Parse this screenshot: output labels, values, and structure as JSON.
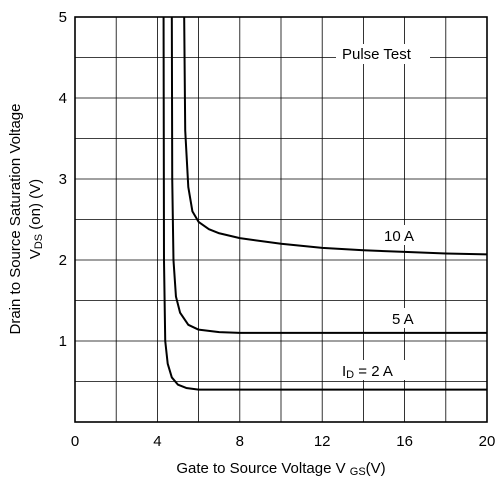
{
  "chart_data": {
    "type": "line",
    "xlabel": {
      "main": "Gate to Source Voltage V ",
      "sub": "GS",
      "tail": "(V)"
    },
    "ylabel": {
      "line1": "Drain to Source Saturation Voltage",
      "line2_main": "V",
      "line2_sub": "DS",
      "line2_tail": " (on)  (V)"
    },
    "xlim": [
      0,
      20
    ],
    "ylim": [
      0,
      5
    ],
    "x_ticks": [
      0,
      4,
      8,
      12,
      16,
      20
    ],
    "y_ticks": [
      1,
      2,
      3,
      4,
      5
    ],
    "grid": true,
    "annotation": "Pulse Test",
    "series": [
      {
        "name": "10 A",
        "x": [
          5.3,
          5.35,
          5.5,
          5.7,
          6.0,
          6.5,
          7.0,
          8.0,
          10.0,
          12.0,
          14.0,
          16.0,
          18.0,
          20.0
        ],
        "y": [
          5.0,
          3.6,
          2.9,
          2.6,
          2.47,
          2.38,
          2.33,
          2.27,
          2.2,
          2.15,
          2.12,
          2.1,
          2.08,
          2.07
        ]
      },
      {
        "name": "5 A",
        "x": [
          4.7,
          4.72,
          4.78,
          4.9,
          5.1,
          5.5,
          6.0,
          7.0,
          8.0,
          12.0,
          16.0,
          20.0
        ],
        "y": [
          5.0,
          3.0,
          2.0,
          1.55,
          1.35,
          1.2,
          1.14,
          1.11,
          1.1,
          1.1,
          1.1,
          1.1
        ]
      },
      {
        "name": "",
        "x": [
          4.3,
          4.32,
          4.38,
          4.5,
          4.7,
          5.0,
          5.4,
          6.0,
          8.0,
          12.0,
          16.0,
          20.0
        ],
        "y": [
          5.0,
          2.0,
          1.0,
          0.72,
          0.55,
          0.46,
          0.42,
          0.4,
          0.4,
          0.4,
          0.4,
          0.4
        ]
      }
    ],
    "series_labels": [
      "10 A",
      "5 A"
    ],
    "id_label": {
      "main": "I",
      "sub": "D",
      "tail": " = 2 A"
    }
  }
}
